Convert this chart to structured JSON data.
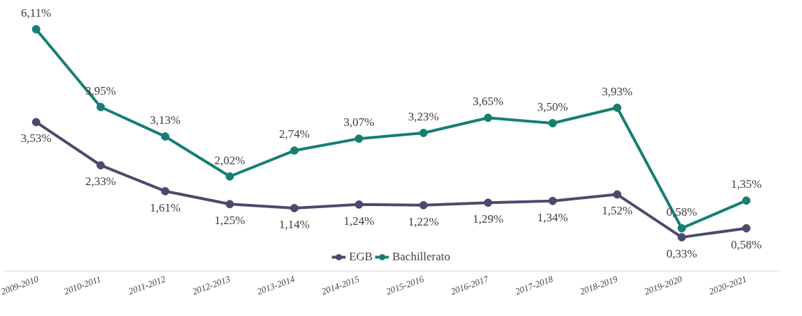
{
  "chart_data": {
    "type": "line",
    "categories": [
      "2009-2010",
      "2010-2011",
      "2011-2012",
      "2012-2013",
      "2013-2014",
      "2014-2015",
      "2015-2016",
      "2016-2017",
      "2017-2018",
      "2018-2019",
      "2019-2020",
      "2020-2021"
    ],
    "series": [
      {
        "name": "EGB",
        "color": "#494b6e",
        "values": [
          3.53,
          2.33,
          1.61,
          1.25,
          1.14,
          1.24,
          1.22,
          1.29,
          1.34,
          1.52,
          0.33,
          0.58
        ],
        "value_labels": [
          "3,53%",
          "2,33%",
          "1,61%",
          "1,25%",
          "1,14%",
          "1,24%",
          "1,22%",
          "1,29%",
          "1,34%",
          "1,52%",
          "0,33%",
          "0,58%"
        ]
      },
      {
        "name": "Bachillerato",
        "color": "#177e74",
        "values": [
          6.11,
          3.95,
          3.13,
          2.02,
          2.74,
          3.07,
          3.23,
          3.65,
          3.5,
          3.93,
          0.58,
          1.35
        ],
        "value_labels": [
          "6,11%",
          "3,95%",
          "3,13%",
          "2,02%",
          "2,74%",
          "3,07%",
          "3,23%",
          "3,65%",
          "3,50%",
          "3,93%",
          "0,58%",
          "1,35%"
        ]
      }
    ],
    "marker": "circle",
    "line_style": "solid",
    "legend": "bottom",
    "grid": false,
    "tick_labels": "x"
  }
}
